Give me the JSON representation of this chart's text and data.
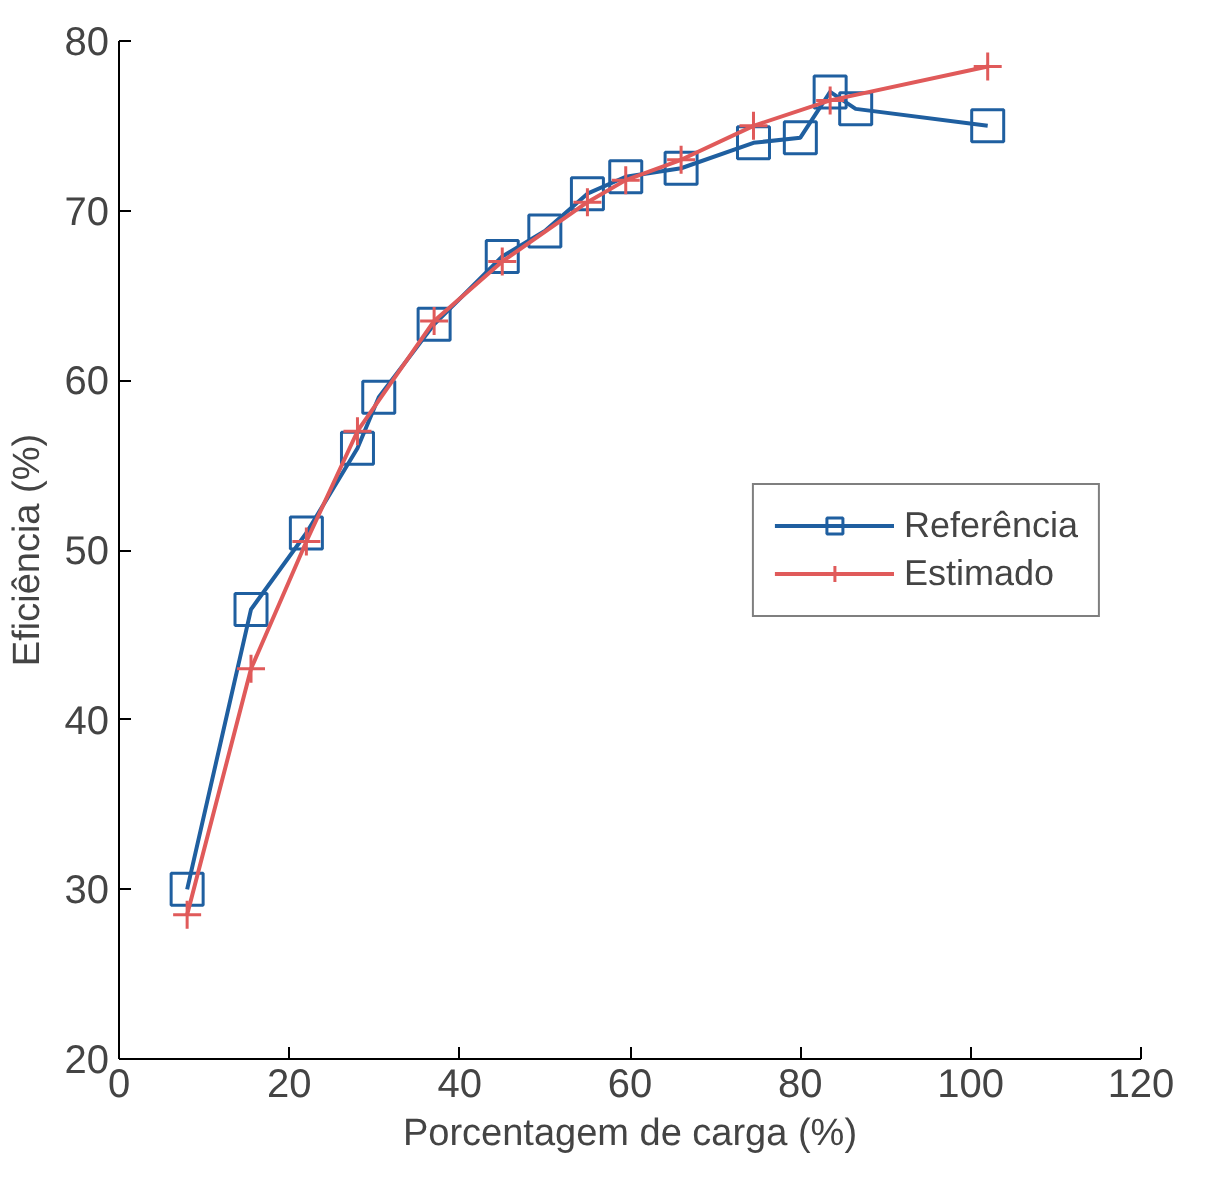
{
  "chart_data": {
    "type": "line",
    "xlabel": "Porcentagem de carga (%)",
    "ylabel": "Eficiência (%)",
    "xlim": [
      0,
      120
    ],
    "ylim": [
      20,
      80
    ],
    "xticks": [
      0,
      20,
      40,
      60,
      80,
      100,
      120
    ],
    "yticks": [
      20,
      30,
      40,
      50,
      60,
      70,
      80
    ],
    "grid": false,
    "legend": "right",
    "line_style": "solid",
    "series": [
      {
        "name": "Referência",
        "color": "#1f5fa0",
        "marker": "square",
        "x": [
          8,
          15.5,
          22,
          28,
          30.5,
          37,
          45,
          50,
          55,
          59.5,
          66,
          74.5,
          80,
          83.5,
          86.5,
          102
        ],
        "values": [
          30,
          46.5,
          51,
          56,
          59,
          63.3,
          67.3,
          68.8,
          71,
          72,
          72.5,
          74,
          74.3,
          77,
          76,
          75
        ]
      },
      {
        "name": "Estimado",
        "color": "#e05a5a",
        "marker": "cross",
        "x": [
          8,
          15.5,
          22,
          28,
          37,
          45,
          55,
          59.5,
          66,
          74.5,
          83.5,
          102
        ],
        "values": [
          28.5,
          43,
          50.5,
          57,
          63.5,
          67,
          70.5,
          71.8,
          73,
          75,
          76.5,
          78.5
        ]
      }
    ]
  }
}
